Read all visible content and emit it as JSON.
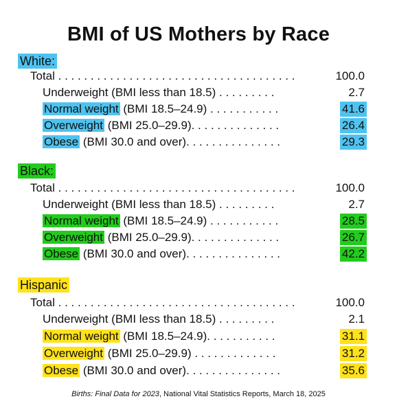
{
  "title": "BMI of US Mothers by Race",
  "colors": {
    "white": "#4fc3f0",
    "black": "#22cc1c",
    "hispanic": "#ffe21a"
  },
  "groups": [
    {
      "label": "White:",
      "rows": [
        {
          "name": "",
          "desc": "Total",
          "leader": " . . . . . . . . . . . . . . . . . . . . . . . . . . . . . . . . . . . . .",
          "value": "100.0"
        },
        {
          "name": "",
          "desc": "Underweight (BMI less than 18.5)",
          "leader": " . . . . . . . . .",
          "value": "2.7"
        },
        {
          "name": "Normal weight",
          "desc": " (BMI 18.5–24.9)",
          "leader": " . . . . . . . . . . .",
          "value": "41.6"
        },
        {
          "name": "Overweight",
          "desc": " (BMI 25.0–29.9)",
          "leader": ". . . . . . . . . . . . . .",
          "value": "26.4"
        },
        {
          "name": "Obese",
          "desc": " (BMI 30.0 and over)",
          "leader": ". . . . . . . . . . . . . . .",
          "value": "29.3"
        }
      ]
    },
    {
      "label": "Black:",
      "rows": [
        {
          "name": "",
          "desc": "Total",
          "leader": " . . . . . . . . . . . . . . . . . . . . . . . . . . . . . . . . . . . . .",
          "value": "100.0"
        },
        {
          "name": "",
          "desc": "Underweight (BMI less than 18.5)",
          "leader": " . . . . . . . . .",
          "value": "2.7"
        },
        {
          "name": "Normal weight",
          "desc": " (BMI 18.5–24.9)",
          "leader": " . . . . . . . . . . .",
          "value": "28.5"
        },
        {
          "name": "Overweight",
          "desc": " (BMI 25.0–29.9)",
          "leader": ". . . . . . . . . . . . . .",
          "value": "26.7"
        },
        {
          "name": "Obese",
          "desc": " (BMI 30.0 and over)",
          "leader": ". . . . . . . . . . . . . . .",
          "value": "42.2"
        }
      ]
    },
    {
      "label": "Hispanic",
      "rows": [
        {
          "name": "",
          "desc": "Total",
          "leader": " . . . . . . . . . . . . . . . . . . . . . . . . . . . . . . . . . . . . .",
          "value": "100.0"
        },
        {
          "name": "",
          "desc": "Underweight (BMI less than 18.5)",
          "leader": " . . . . . . . . .",
          "value": "2.1"
        },
        {
          "name": "Normal weight",
          "desc": " (BMI 18.5–24.9)",
          "leader": ". . . . . . . . . . .",
          "value": "31.1"
        },
        {
          "name": "Overweight",
          "desc": " (BMI 25.0–29.9)",
          "leader": " . . . . . . . . . . . . .",
          "value": "31.2"
        },
        {
          "name": "Obese",
          "desc": " (BMI 30.0 and over)",
          "leader": ". . . . . . . . . . . . . . .",
          "value": "35.6"
        }
      ]
    }
  ],
  "source": {
    "italic": "Births: Final Data for 2023",
    "rest": ", National Vital Statistics Reports, March 18, 2025"
  }
}
